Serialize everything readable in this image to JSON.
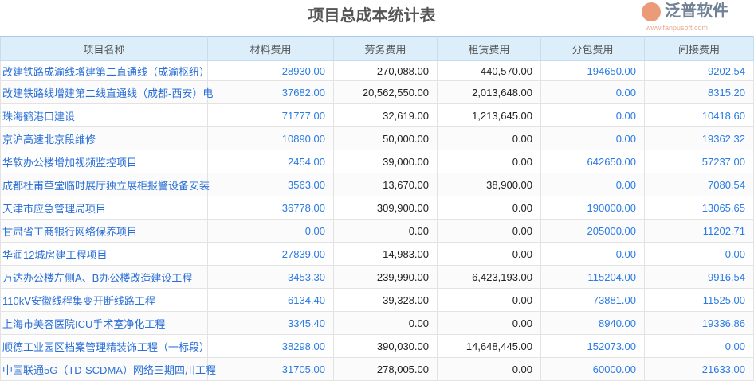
{
  "title": "项目总成本统计表",
  "columns": [
    "项目名称",
    "材料费用",
    "劳务费用",
    "租赁费用",
    "分包费用",
    "间接费用"
  ],
  "rows": [
    [
      "改建铁路成渝线增建第二直通线（成渝枢纽）",
      "28930.00",
      "270,088.00",
      "440,570.00",
      "194650.00",
      "9202.54"
    ],
    [
      "改建铁路线增建第二线直通线（成都-西安）电",
      "37682.00",
      "20,562,550.00",
      "2,013,648.00",
      "0.00",
      "8315.20"
    ],
    [
      "珠海鹤港口建设",
      "71777.00",
      "32,619.00",
      "1,213,645.00",
      "0.00",
      "10418.60"
    ],
    [
      "京沪高速北京段维修",
      "10890.00",
      "50,000.00",
      "0.00",
      "0.00",
      "19362.32"
    ],
    [
      "华软办公楼增加视频监控项目",
      "2454.00",
      "39,000.00",
      "0.00",
      "642650.00",
      "57237.00"
    ],
    [
      "成都杜甫草堂临时展厅独立展柜报警设备安装",
      "3563.00",
      "13,670.00",
      "38,900.00",
      "0.00",
      "7080.54"
    ],
    [
      "天津市应急管理局项目",
      "36778.00",
      "309,900.00",
      "0.00",
      "190000.00",
      "13065.65"
    ],
    [
      "甘肃省工商银行网络保养项目",
      "0.00",
      "0.00",
      "0.00",
      "205000.00",
      "11202.71"
    ],
    [
      "华润12城房建工程项目",
      "27839.00",
      "14,983.00",
      "0.00",
      "0.00",
      "0.00"
    ],
    [
      "万达办公楼左侧A、B办公楼改造建设工程",
      "3453.30",
      "239,990.00",
      "6,423,193.00",
      "115204.00",
      "9916.54"
    ],
    [
      "110kV安徽线程集变开断线路工程",
      "6134.40",
      "39,328.00",
      "0.00",
      "73881.00",
      "11525.00"
    ],
    [
      "上海市美容医院ICU手术室净化工程",
      "3345.40",
      "0.00",
      "0.00",
      "8940.00",
      "19336.86"
    ],
    [
      "顺德工业园区档案管理精装饰工程（一标段）",
      "38298.00",
      "390,030.00",
      "14,648,445.00",
      "152073.00",
      "0.00"
    ],
    [
      "中国联通5G（TD-SCDMA）网络三期四川工程",
      "31705.00",
      "278,005.00",
      "0.00",
      "60000.00",
      "21633.00"
    ]
  ],
  "watermark": {
    "text": "泛普软件",
    "url": "www.fanpusoft.com"
  }
}
